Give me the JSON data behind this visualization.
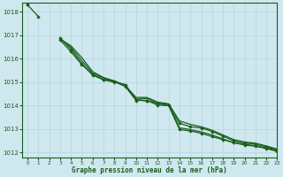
{
  "title": "Graphe pression niveau de la mer (hPa)",
  "background_color": "#cfe8f0",
  "grid_color": "#b8d8e0",
  "line_color": "#1a5e1a",
  "marker_color": "#1a5e1a",
  "xlim": [
    -0.5,
    23
  ],
  "ylim": [
    1011.8,
    1018.4
  ],
  "yticks": [
    1012,
    1013,
    1014,
    1015,
    1016,
    1017,
    1018
  ],
  "xticks": [
    0,
    1,
    2,
    3,
    4,
    5,
    6,
    7,
    8,
    9,
    10,
    11,
    12,
    13,
    14,
    15,
    16,
    17,
    18,
    19,
    20,
    21,
    22,
    23
  ],
  "series": [
    {
      "y": [
        1018.3,
        1017.8,
        null,
        1016.9,
        1016.4,
        1015.8,
        1015.3,
        1015.1,
        1015.0,
        1014.9,
        1014.25,
        1014.2,
        1014.1,
        1014.0,
        1013.25,
        1013.1,
        1013.05,
        1012.9,
        1012.7,
        1012.5,
        1012.4,
        1012.35,
        1012.25,
        1012.1
      ],
      "has_markers": true
    },
    {
      "y": [
        1018.3,
        null,
        null,
        1016.85,
        1016.55,
        1016.05,
        1015.45,
        1015.2,
        1015.05,
        1014.85,
        1014.35,
        1014.35,
        1014.15,
        1014.08,
        1013.35,
        1013.2,
        1013.1,
        1012.95,
        1012.75,
        1012.55,
        1012.45,
        1012.4,
        1012.28,
        1012.15
      ],
      "has_markers": false
    },
    {
      "y": [
        1018.3,
        null,
        null,
        1016.85,
        1016.48,
        1015.92,
        1015.38,
        1015.18,
        1015.05,
        1014.88,
        1014.28,
        1014.3,
        1014.1,
        1014.05,
        1013.05,
        1012.98,
        1012.88,
        1012.75,
        1012.58,
        1012.42,
        1012.35,
        1012.28,
        1012.2,
        1012.08
      ],
      "has_markers": false
    },
    {
      "y": [
        1018.3,
        null,
        null,
        1016.8,
        1016.3,
        1015.75,
        1015.32,
        1015.12,
        1015.02,
        1014.82,
        1014.22,
        1014.22,
        1014.02,
        1014.0,
        1012.98,
        1012.92,
        1012.82,
        1012.68,
        1012.55,
        1012.42,
        1012.32,
        1012.27,
        1012.17,
        1012.05
      ],
      "has_markers": true
    }
  ]
}
